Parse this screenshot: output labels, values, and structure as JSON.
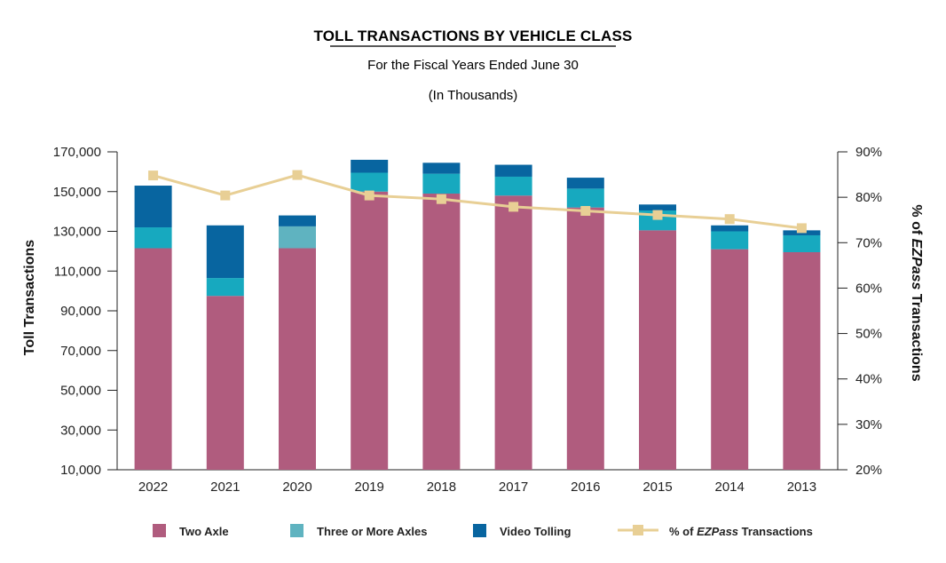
{
  "chart_data": {
    "type": "bar",
    "stacked": true,
    "title": "TOLL TRANSACTIONS BY VEHICLE CLASS",
    "subtitle": "For the Fiscal Years Ended June 30",
    "subtitle2": "(In Thousands)",
    "ylabel": "Toll Transactions",
    "y2label_prefix": "% of ",
    "y2label_emph": "EZPass",
    "y2label_suffix": " Transactions",
    "ylim": [
      10000,
      170000
    ],
    "yticks": [
      10000,
      30000,
      50000,
      70000,
      90000,
      110000,
      130000,
      150000,
      170000
    ],
    "ytick_labels": [
      "10,000",
      "30,000",
      "50,000",
      "70,000",
      "90,000",
      "110,000",
      "130,000",
      "150,000",
      "170,000"
    ],
    "y2lim": [
      20,
      90
    ],
    "y2ticks": [
      20,
      30,
      40,
      50,
      60,
      70,
      80,
      90
    ],
    "y2tick_labels": [
      "20%",
      "30%",
      "40%",
      "50%",
      "60%",
      "70%",
      "80%",
      "90%"
    ],
    "categories": [
      "2022",
      "2021",
      "2020",
      "2019",
      "2018",
      "2017",
      "2016",
      "2015",
      "2014",
      "2013"
    ],
    "series": [
      {
        "name": "Two Axle",
        "color": "#b05c7e",
        "values": [
          121500,
          97500,
          121500,
          150000,
          149000,
          148000,
          142000,
          130500,
          121000,
          119500
        ]
      },
      {
        "name": "Three or More Axles",
        "color_by_bar": [
          "#17a9bf",
          "#17a9bf",
          "#5fb3c0",
          "#17a9bf",
          "#17a9bf",
          "#17a9bf",
          "#17a9bf",
          "#17a9bf",
          "#17a9bf",
          "#17a9bf"
        ],
        "color": "#17a9bf",
        "values": [
          10500,
          9000,
          11000,
          9500,
          10000,
          9500,
          9500,
          10000,
          9000,
          8500
        ]
      },
      {
        "name": "Video Tolling",
        "color": "#0865a0",
        "values": [
          21000,
          26500,
          5500,
          6500,
          5500,
          6000,
          5500,
          3000,
          3000,
          2500
        ]
      }
    ],
    "line_series": {
      "name_prefix": "% of ",
      "name_emph": "EZPass",
      "name_suffix": " Transactions",
      "color": "#e8cf95",
      "axis": "right",
      "values": [
        84.8,
        80.4,
        84.9,
        80.4,
        79.6,
        77.9,
        77.0,
        76.1,
        75.2,
        73.2
      ]
    },
    "legend_position": "bottom",
    "grid": false
  }
}
